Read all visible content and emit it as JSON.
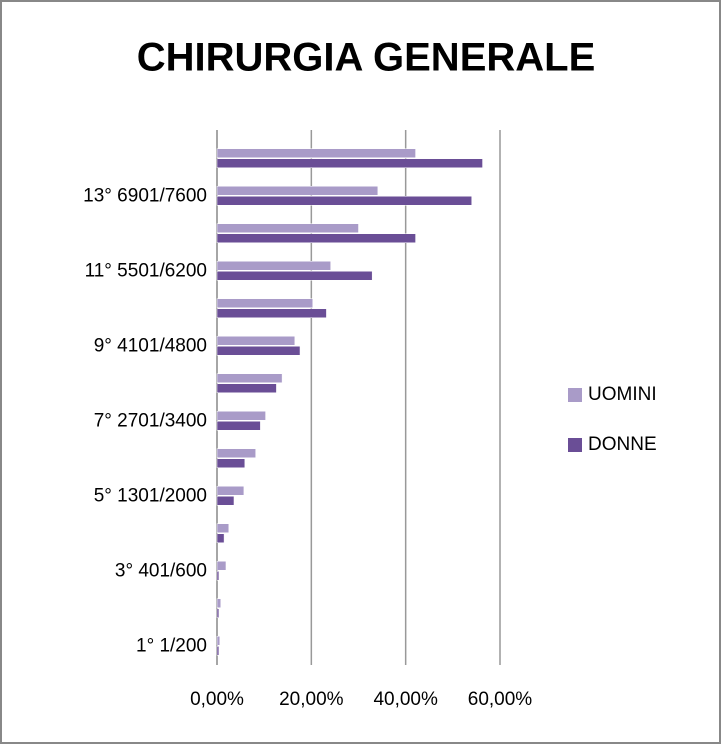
{
  "chart_data": {
    "type": "hbar",
    "title": "CHIRURGIA GENERALE",
    "categories": [
      "1° 1/200",
      null,
      "3° 401/600",
      null,
      "5° 1301/2000",
      null,
      "7° 2701/3400",
      null,
      "9° 4101/4800",
      null,
      "11° 5501/6200",
      null,
      "13° 6901/7600",
      null
    ],
    "series": [
      {
        "name": "UOMINI",
        "color": "#a99bc8",
        "values": [
          0.6,
          0.8,
          1.9,
          2.5,
          5.7,
          8.2,
          10.3,
          13.8,
          16.5,
          20.3,
          24.1,
          30.0,
          34.1,
          42.1
        ]
      },
      {
        "name": "DONNE",
        "color": "#6a4e96",
        "values": [
          0.4,
          0.4,
          0.4,
          1.5,
          3.6,
          5.9,
          9.2,
          12.6,
          17.6,
          23.2,
          32.9,
          42.1,
          54.0,
          56.3
        ]
      }
    ],
    "xlim": [
      0,
      60
    ],
    "xticks": [
      {
        "value": 0,
        "label": "0,00%"
      },
      {
        "value": 20,
        "label": "20,00%"
      },
      {
        "value": 40,
        "label": "40,00%"
      },
      {
        "value": 60,
        "label": "60,00%"
      }
    ],
    "grid": true,
    "legend": "right"
  }
}
